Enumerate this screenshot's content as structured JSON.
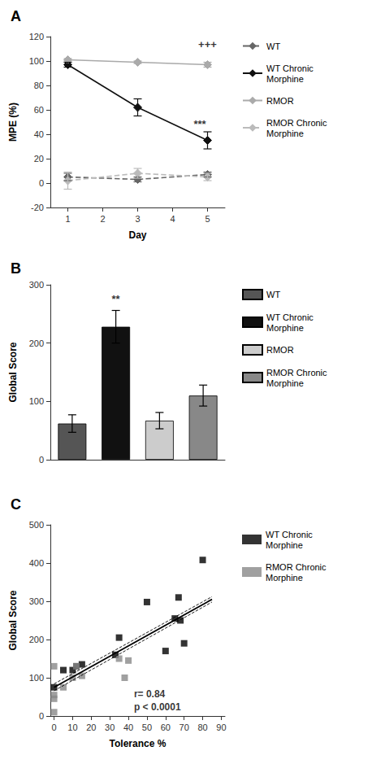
{
  "chart_data": [
    {
      "type": "line",
      "title": "A",
      "x": [
        1,
        3,
        5
      ],
      "xlabel": "Day",
      "ylabel": "MPE (%)",
      "xlim": [
        0.5,
        5.5
      ],
      "xticks": [
        1,
        2,
        3,
        4,
        5
      ],
      "ylim": [
        -20,
        120
      ],
      "yticks": [
        -20,
        0,
        20,
        40,
        60,
        80,
        100,
        120
      ],
      "grid": false,
      "legend": "right",
      "marker": "diamond",
      "series": [
        {
          "name": "WT",
          "color": "#666666",
          "line_style": "dashed",
          "values": [
            5,
            3,
            7
          ],
          "errors": [
            3,
            2,
            2
          ]
        },
        {
          "name": "WT Chronic\nMorphine",
          "color": "#111111",
          "line_style": "solid",
          "values": [
            97,
            62,
            35
          ],
          "errors": [
            2,
            7,
            7
          ]
        },
        {
          "name": "RMOR",
          "color": "#aaaaaa",
          "line_style": "solid",
          "values": [
            101,
            99,
            97
          ],
          "errors": [
            1,
            1,
            2
          ]
        },
        {
          "name": "RMOR Chronic\nMorphine",
          "color": "#bbbbbb",
          "line_style": "dashed",
          "values": [
            2,
            8,
            5
          ],
          "errors": [
            7,
            4,
            3
          ]
        }
      ],
      "annotations": [
        {
          "text": "+++",
          "x": 5.0,
          "y": 107
        },
        {
          "text": "***",
          "x": 4.78,
          "y": 42
        }
      ]
    },
    {
      "type": "bar",
      "title": "B",
      "categories": [
        null,
        null,
        null,
        null
      ],
      "ylabel": "Global Score",
      "ylim": [
        0,
        300
      ],
      "yticks": [
        0,
        100,
        200,
        300
      ],
      "grid": false,
      "legend": "right",
      "tick_labels": "y",
      "series": [
        {
          "name": "WT",
          "color": "#555555",
          "values": [
            62,
            null,
            null,
            null
          ],
          "errors": [
            15,
            null,
            null,
            null
          ]
        },
        {
          "name": "WT Chronic\nMorphine",
          "color": "#111111",
          "values": [
            null,
            228,
            null,
            null
          ],
          "errors": [
            null,
            28,
            null,
            null
          ]
        },
        {
          "name": "RMOR",
          "color": "#cccccc",
          "values": [
            null,
            null,
            67,
            null
          ],
          "errors": [
            null,
            null,
            14,
            null
          ]
        },
        {
          "name": "RMOR Chronic\nMorphine",
          "color": "#888888",
          "values": [
            null,
            null,
            null,
            110
          ],
          "errors": [
            null,
            null,
            null,
            18
          ]
        }
      ],
      "annotations": [
        {
          "text": "**",
          "x": 1,
          "y": 262
        }
      ]
    },
    {
      "type": "scatter",
      "title": "C",
      "xlabel": "Tolerance %",
      "ylabel": "Global Score",
      "xlim": [
        -2,
        92
      ],
      "xticks": [
        0,
        10,
        20,
        30,
        40,
        50,
        60,
        70,
        80,
        90
      ],
      "ylim": [
        0,
        500
      ],
      "yticks": [
        0,
        100,
        200,
        300,
        400,
        500
      ],
      "grid": false,
      "legend": "right",
      "marker": "square",
      "series": [
        {
          "name": "WT Chronic\nMorphine",
          "color": "#000000",
          "x": [
            0,
            5,
            10,
            12,
            15,
            33,
            35,
            50,
            60,
            65,
            67,
            68,
            70,
            80
          ],
          "values": [
            75,
            120,
            120,
            130,
            135,
            160,
            205,
            298,
            170,
            255,
            310,
            250,
            190,
            408
          ]
        },
        {
          "name": "RMOR Chronic\nMorphine",
          "color": "#888888",
          "x": [
            0,
            0,
            0,
            0,
            5,
            10,
            12,
            15,
            35,
            38,
            40
          ],
          "values": [
            130,
            55,
            45,
            10,
            75,
            100,
            130,
            105,
            150,
            100,
            145
          ]
        }
      ],
      "regression": {
        "x": [
          0,
          85
        ],
        "y": [
          75,
          305
        ],
        "ci_upper": [
          84,
          312
        ],
        "ci_lower": [
          66,
          298
        ],
        "color": "#000000"
      },
      "annotations": [
        {
          "text": "r= 0.84\np < 0.0001",
          "x": 43,
          "y": 75
        }
      ]
    }
  ]
}
